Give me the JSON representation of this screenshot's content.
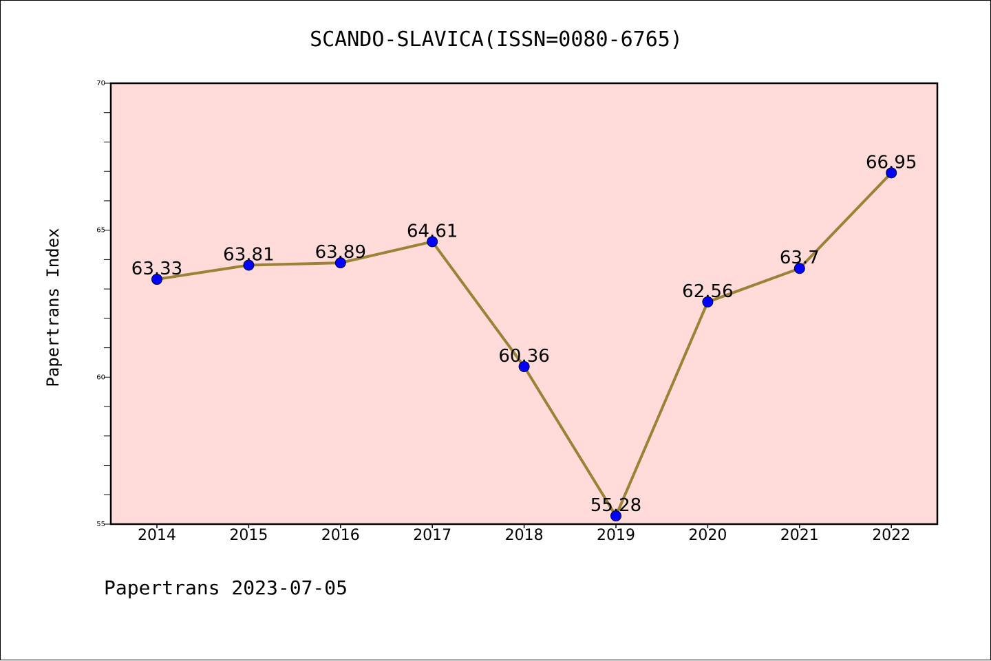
{
  "chart_data": {
    "type": "line",
    "title": "SCANDO-SLAVICA(ISSN=0080-6765)",
    "xlabel": "",
    "ylabel": "Papertrans Index",
    "categories": [
      "2014",
      "2015",
      "2016",
      "2017",
      "2018",
      "2019",
      "2020",
      "2021",
      "2022"
    ],
    "series": [
      {
        "values": [
          63.33,
          63.81,
          63.89,
          64.61,
          60.36,
          55.28,
          62.56,
          63.7,
          66.95
        ],
        "labels": [
          "63.33",
          "63.81",
          "63.89",
          "64.61",
          "60.36",
          "55.28",
          "62.56",
          "63.7",
          "66.95"
        ]
      }
    ],
    "ylim": [
      55,
      70
    ],
    "yticks": [
      "55",
      "60",
      "65",
      "70"
    ],
    "grid": false,
    "footer": "Papertrans 2023-07-05"
  },
  "colors": {
    "plot_background": "#FFDCDA",
    "line": "#9B8236",
    "marker": "#0000FF"
  }
}
